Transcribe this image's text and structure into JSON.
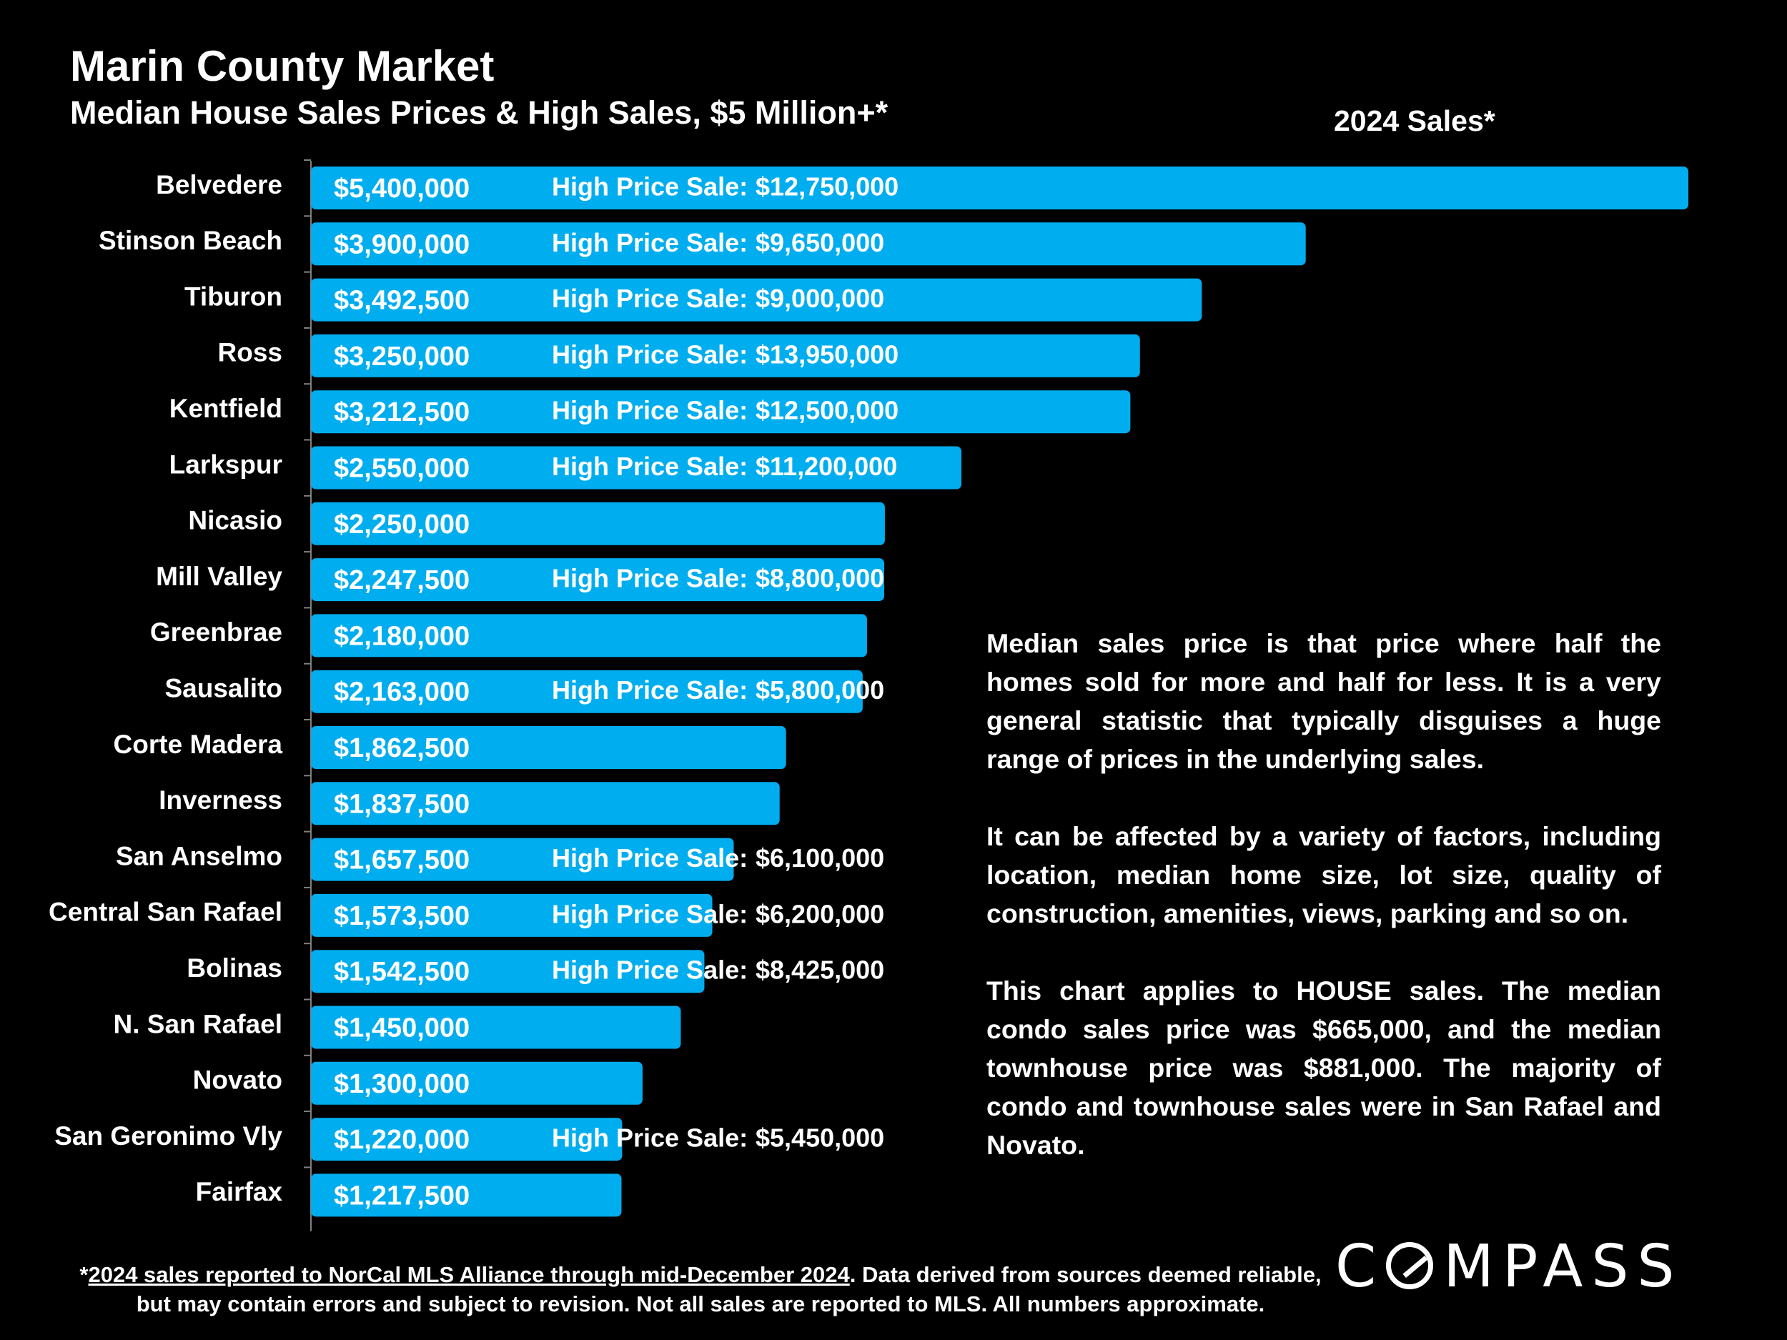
{
  "title": "Marin County Market",
  "subtitle": "Median House Sales Prices & High Sales, $5 Million+*",
  "year_label": "2024 Sales*",
  "colors": {
    "background": "#000000",
    "bar": "#00ADEF",
    "text": "#FFFFFF"
  },
  "chart_data": {
    "type": "bar",
    "orientation": "horizontal",
    "categories": [
      "Belvedere",
      "Stinson Beach",
      "Tiburon",
      "Ross",
      "Kentfield",
      "Larkspur",
      "Nicasio",
      "Mill Valley",
      "Greenbrae",
      "Sausalito",
      "Corte Madera",
      "Inverness",
      "San Anselmo",
      "Central San Rafael",
      "Bolinas",
      "N. San Rafael",
      "Novato",
      "San Geronimo Vly",
      "Fairfax"
    ],
    "series": [
      {
        "values": [
          5400000,
          3900000,
          3492500,
          3250000,
          3212500,
          2550000,
          2250000,
          2247500,
          2180000,
          2163000,
          1862500,
          1837500,
          1657500,
          1573500,
          1542500,
          1450000,
          1300000,
          1220000,
          1217500
        ]
      }
    ],
    "value_labels": [
      "$5,400,000",
      "$3,900,000",
      "$3,492,500",
      "$3,250,000",
      "$3,212,500",
      "$2,550,000",
      "$2,250,000",
      "$2,247,500",
      "$2,180,000",
      "$2,163,000",
      "$1,862,500",
      "$1,837,500",
      "$1,657,500",
      "$1,573,500",
      "$1,542,500",
      "$1,450,000",
      "$1,300,000",
      "$1,220,000",
      "$1,217,500"
    ],
    "high_sale_prefix": "High Price Sale:",
    "high_sales": [
      "$12,750,000",
      "$9,650,000",
      "$9,000,000",
      "$13,950,000",
      "$12,500,000",
      "$11,200,000",
      "",
      "$8,800,000",
      "",
      "$5,800,000",
      "",
      "",
      "$6,100,000",
      "$6,200,000",
      "$8,425,000",
      "",
      "",
      "$5,450,000",
      ""
    ],
    "xlim": [
      0,
      5500000
    ],
    "grid": false
  },
  "explanation": [
    "Median sales price is that price where half the homes sold for more and half for less. It is a very general statistic that typically disguises a huge range of prices in the underlying sales.",
    "It can be affected by a variety of factors, including location, median home size, lot size, quality of construction, amenities, views, parking and so on.",
    "This chart applies to HOUSE sales. The median condo sales price was $665,000, and the median townhouse price was $881,000. The majority of condo and townhouse sales were in San Rafael and Novato."
  ],
  "footnote": {
    "link_text": "2024 sales reported to NorCal MLS Alliance through mid-December 2024",
    "rest": ". Data derived from sources deemed reliable, but may contain errors and subject to revision. Not all sales are reported to MLS. All numbers approximate."
  },
  "logo_text": "COMPASS"
}
